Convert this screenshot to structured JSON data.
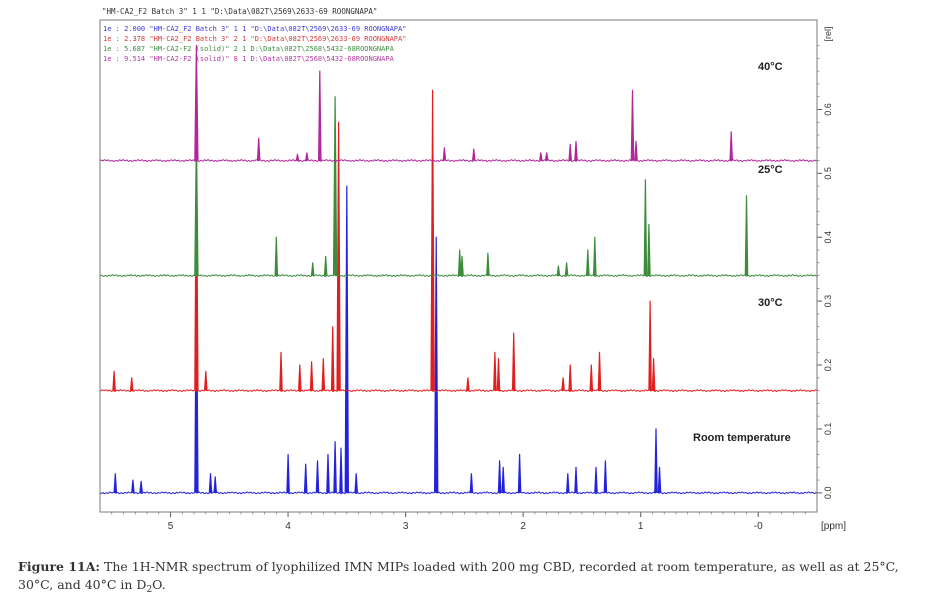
{
  "chart_data": {
    "type": "line",
    "title": "",
    "xlabel": "[ppm]",
    "ylabel": "[rel]",
    "xlim": [
      5.6,
      -0.5
    ],
    "ylim": [
      -0.03,
      0.74
    ],
    "x_ticks": [
      "5",
      "4",
      "3",
      "2",
      "1",
      "-0"
    ],
    "x_tick_values": [
      5,
      4,
      3,
      2,
      1,
      0
    ],
    "y_ticks": [
      "0.0",
      "0.1",
      "0.2",
      "0.3",
      "0.4",
      "0.5",
      "0.6",
      "[rel]"
    ],
    "y_tick_values": [
      0.0,
      0.1,
      0.2,
      0.3,
      0.4,
      0.5,
      0.6
    ],
    "legend_header": "\"HM-CA2_F2 Batch 3\"  1  1  \"D:\\Data\\082T\\2569\\2633-69 ROONGNAPA\"",
    "legend": [
      {
        "text": "1e : 2.000   \"HM-CA2_F2 Batch 3\"  1  1  \"D:\\Data\\082T\\2569\\2633-69 ROONGNAPA\"",
        "color": "#3a3ad6"
      },
      {
        "text": "1e : 2.378   \"HM-CA2_F2 Batch 3\"  2  1  \"D:\\Data\\082T\\2569\\2633-69 ROONGNAPA\"",
        "color": "#d63a3a"
      },
      {
        "text": "1e : 5.687   \"HM-CA2-F2 (solid)\"  2  1  D:\\Data\\082T\\2568\\5432-68ROONGNAPA",
        "color": "#3f8f3f"
      },
      {
        "text": "1e : 9.514   \"HM-CA2-F2 (solid)\"  8  1  D:\\Data\\082T\\2568\\5432-68ROONGNAPA",
        "color": "#b03aa0"
      }
    ],
    "series": [
      {
        "name": "Room temperature",
        "color": "#2323dc",
        "baseline": 0.0,
        "peaks": [
          {
            "ppm": 5.47,
            "h": 0.03
          },
          {
            "ppm": 5.32,
            "h": 0.02
          },
          {
            "ppm": 5.25,
            "h": 0.018
          },
          {
            "ppm": 4.78,
            "h": 0.36
          },
          {
            "ppm": 4.66,
            "h": 0.03
          },
          {
            "ppm": 4.62,
            "h": 0.025
          },
          {
            "ppm": 4.0,
            "h": 0.06
          },
          {
            "ppm": 3.85,
            "h": 0.045
          },
          {
            "ppm": 3.75,
            "h": 0.05
          },
          {
            "ppm": 3.66,
            "h": 0.06
          },
          {
            "ppm": 3.6,
            "h": 0.08
          },
          {
            "ppm": 3.55,
            "h": 0.07
          },
          {
            "ppm": 3.5,
            "h": 0.48
          },
          {
            "ppm": 3.42,
            "h": 0.03
          },
          {
            "ppm": 2.74,
            "h": 0.4
          },
          {
            "ppm": 2.44,
            "h": 0.03
          },
          {
            "ppm": 2.2,
            "h": 0.05
          },
          {
            "ppm": 2.17,
            "h": 0.04
          },
          {
            "ppm": 2.03,
            "h": 0.06
          },
          {
            "ppm": 1.62,
            "h": 0.03
          },
          {
            "ppm": 1.55,
            "h": 0.04
          },
          {
            "ppm": 1.38,
            "h": 0.04
          },
          {
            "ppm": 1.3,
            "h": 0.05
          },
          {
            "ppm": 0.87,
            "h": 0.1
          },
          {
            "ppm": 0.84,
            "h": 0.04
          }
        ]
      },
      {
        "name": "30°C",
        "color": "#e02020",
        "baseline": 0.16,
        "peaks": [
          {
            "ppm": 5.48,
            "h": 0.03
          },
          {
            "ppm": 5.33,
            "h": 0.02
          },
          {
            "ppm": 4.78,
            "h": 0.38
          },
          {
            "ppm": 4.7,
            "h": 0.03
          },
          {
            "ppm": 4.06,
            "h": 0.06
          },
          {
            "ppm": 3.9,
            "h": 0.04
          },
          {
            "ppm": 3.8,
            "h": 0.045
          },
          {
            "ppm": 3.7,
            "h": 0.05
          },
          {
            "ppm": 3.62,
            "h": 0.1
          },
          {
            "ppm": 3.57,
            "h": 0.42
          },
          {
            "ppm": 2.77,
            "h": 0.47
          },
          {
            "ppm": 2.47,
            "h": 0.02
          },
          {
            "ppm": 2.24,
            "h": 0.06
          },
          {
            "ppm": 2.21,
            "h": 0.05
          },
          {
            "ppm": 2.08,
            "h": 0.09
          },
          {
            "ppm": 1.66,
            "h": 0.02
          },
          {
            "ppm": 1.6,
            "h": 0.04
          },
          {
            "ppm": 1.42,
            "h": 0.04
          },
          {
            "ppm": 1.35,
            "h": 0.06
          },
          {
            "ppm": 0.92,
            "h": 0.14
          },
          {
            "ppm": 0.89,
            "h": 0.05
          }
        ]
      },
      {
        "name": "25°C",
        "color": "#3c8c3c",
        "baseline": 0.34,
        "peaks": [
          {
            "ppm": 4.78,
            "h": 0.22
          },
          {
            "ppm": 4.1,
            "h": 0.06
          },
          {
            "ppm": 3.79,
            "h": 0.02
          },
          {
            "ppm": 3.68,
            "h": 0.03
          },
          {
            "ppm": 3.6,
            "h": 0.28
          },
          {
            "ppm": 2.54,
            "h": 0.04
          },
          {
            "ppm": 2.52,
            "h": 0.03
          },
          {
            "ppm": 2.3,
            "h": 0.035
          },
          {
            "ppm": 1.7,
            "h": 0.015
          },
          {
            "ppm": 1.63,
            "h": 0.02
          },
          {
            "ppm": 1.45,
            "h": 0.04
          },
          {
            "ppm": 1.39,
            "h": 0.06
          },
          {
            "ppm": 0.96,
            "h": 0.15
          },
          {
            "ppm": 0.93,
            "h": 0.08
          },
          {
            "ppm": 0.1,
            "h": 0.125
          }
        ]
      },
      {
        "name": "40°C",
        "color": "#b0289a",
        "baseline": 0.52,
        "peaks": [
          {
            "ppm": 4.78,
            "h": 0.18
          },
          {
            "ppm": 4.25,
            "h": 0.035
          },
          {
            "ppm": 3.92,
            "h": 0.01
          },
          {
            "ppm": 3.84,
            "h": 0.012
          },
          {
            "ppm": 3.73,
            "h": 0.14
          },
          {
            "ppm": 2.67,
            "h": 0.02
          },
          {
            "ppm": 2.42,
            "h": 0.018
          },
          {
            "ppm": 1.85,
            "h": 0.012
          },
          {
            "ppm": 1.8,
            "h": 0.012
          },
          {
            "ppm": 1.6,
            "h": 0.025
          },
          {
            "ppm": 1.55,
            "h": 0.03
          },
          {
            "ppm": 1.07,
            "h": 0.11
          },
          {
            "ppm": 1.04,
            "h": 0.03
          },
          {
            "ppm": 0.23,
            "h": 0.045
          }
        ]
      }
    ]
  },
  "caption": {
    "label": "Figure 11A:",
    "text": " The 1H-NMR spectrum of lyophilized IMN MIPs loaded with 200 mg CBD, recorded at room temperature, as well as at 25°C, 30°C, and 40°C in D",
    "sub": "2",
    "end": "O."
  }
}
